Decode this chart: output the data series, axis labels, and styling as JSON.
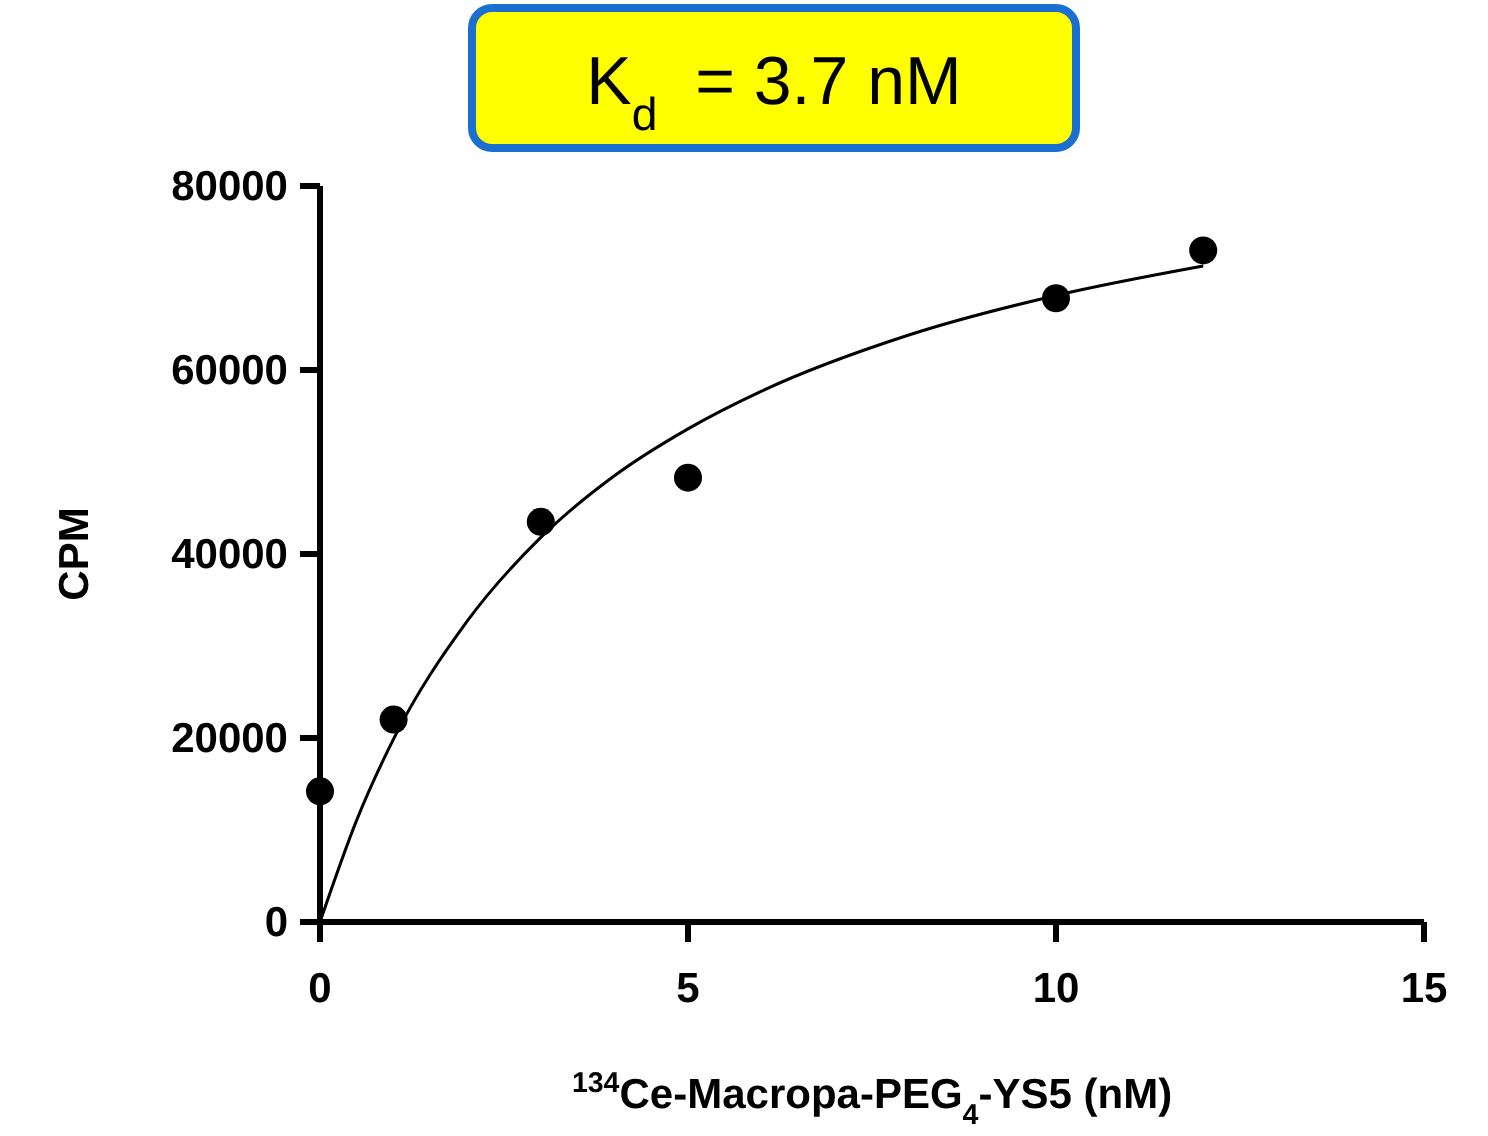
{
  "chart_data": {
    "type": "scatter",
    "title": "K$_{d}$  = 3.7 nM",
    "xlabel": "$^{134}$Ce-Macropa-PEG$_{4}$-YS5 (nM)",
    "ylabel": "CPM",
    "xlim": [
      0,
      15
    ],
    "ylim": [
      0,
      80000
    ],
    "xticks": [
      0,
      5,
      10,
      15
    ],
    "yticks": [
      0,
      20000,
      40000,
      60000,
      80000
    ],
    "grid": false,
    "series": [
      {
        "color": "#000000",
        "marker": "circle",
        "x": [
          0,
          1,
          3,
          5,
          10,
          12
        ],
        "values": [
          14200,
          22000,
          43500,
          48300,
          67800,
          73000
        ]
      },
      {
        "type": "line",
        "color": "#000000",
        "line_style": "solid",
        "x": [
          0,
          0.5,
          1,
          2,
          3,
          4,
          5,
          6,
          8,
          10,
          12
        ],
        "values": [
          0,
          11100,
          19900,
          32700,
          41800,
          48500,
          53600,
          57700,
          63800,
          68100,
          71300
        ]
      }
    ]
  }
}
